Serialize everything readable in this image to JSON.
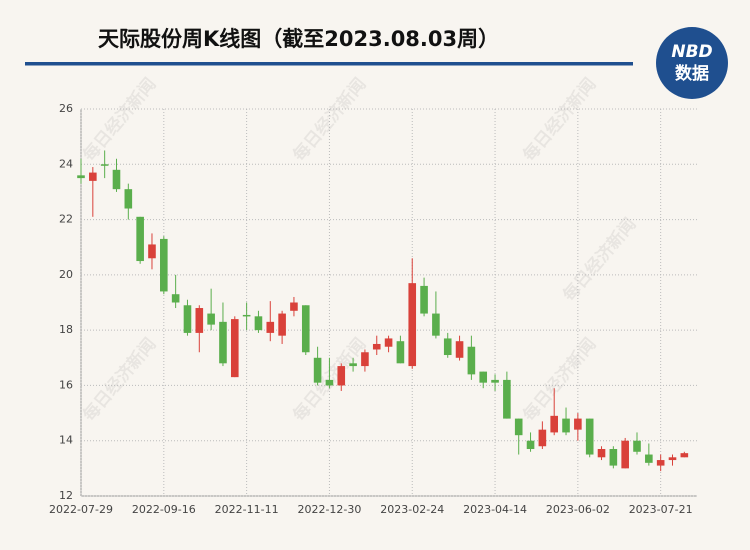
{
  "header": {
    "logo_top": "NBD",
    "logo_bottom": "数据",
    "watermark": "每日经济新闻"
  },
  "chart_data": {
    "type": "candlestick",
    "title": "天际股份周K线图（截至2023.08.03周）",
    "categories": [
      "2022-07-29",
      null,
      null,
      null,
      null,
      null,
      null,
      "2022-09-16",
      null,
      null,
      null,
      null,
      null,
      null,
      "2022-11-11",
      null,
      null,
      null,
      null,
      null,
      null,
      "2022-12-30",
      null,
      null,
      null,
      null,
      null,
      null,
      "2023-02-24",
      null,
      null,
      null,
      null,
      null,
      null,
      "2023-04-14",
      null,
      null,
      null,
      null,
      null,
      null,
      "2023-06-02",
      null,
      null,
      null,
      null,
      null,
      null,
      "2023-07-21",
      null,
      null
    ],
    "open": [
      23.6,
      23.4,
      24.0,
      23.8,
      23.1,
      22.1,
      20.6,
      21.3,
      19.3,
      18.9,
      17.9,
      18.6,
      18.3,
      16.3,
      18.55,
      18.5,
      17.9,
      17.8,
      18.7,
      18.9,
      17.0,
      16.2,
      16.0,
      16.8,
      16.7,
      17.3,
      17.4,
      17.6,
      16.7,
      19.6,
      18.6,
      17.7,
      17.0,
      17.4,
      16.5,
      16.2,
      16.2,
      14.8,
      14.0,
      13.8,
      14.3,
      14.8,
      14.4,
      14.8,
      13.4,
      13.7,
      13.0,
      14.0,
      13.5,
      13.1,
      13.3,
      13.4
    ],
    "high": [
      24.2,
      23.9,
      24.5,
      24.2,
      23.3,
      22.1,
      21.5,
      21.4,
      20.0,
      19.1,
      18.9,
      19.5,
      19.0,
      18.5,
      19.0,
      18.7,
      19.05,
      18.7,
      19.2,
      18.9,
      17.4,
      17.0,
      16.8,
      17.0,
      17.3,
      17.8,
      17.8,
      17.8,
      20.6,
      19.9,
      19.4,
      17.9,
      17.8,
      17.8,
      16.5,
      16.4,
      16.5,
      14.8,
      14.3,
      14.7,
      15.9,
      15.2,
      15.0,
      14.8,
      13.8,
      13.8,
      14.1,
      14.3,
      13.9,
      13.5,
      13.5,
      13.6
    ],
    "low": [
      23.3,
      22.1,
      23.5,
      23.0,
      22.0,
      20.4,
      20.2,
      19.3,
      18.8,
      17.8,
      17.2,
      18.0,
      16.7,
      16.3,
      18.0,
      17.9,
      17.6,
      17.5,
      18.5,
      17.1,
      16.0,
      15.9,
      15.8,
      16.5,
      16.5,
      17.1,
      17.2,
      16.8,
      16.6,
      18.5,
      17.7,
      17.0,
      16.9,
      16.2,
      15.9,
      15.8,
      14.8,
      13.5,
      13.6,
      13.7,
      14.2,
      14.2,
      14.0,
      13.4,
      13.3,
      13.0,
      13.0,
      13.5,
      13.1,
      12.9,
      13.1,
      13.4
    ],
    "close": [
      23.5,
      23.7,
      23.95,
      23.1,
      22.4,
      20.5,
      21.1,
      19.4,
      19.0,
      17.9,
      18.8,
      18.2,
      16.8,
      18.4,
      18.5,
      18.0,
      18.3,
      18.6,
      19.0,
      17.2,
      16.1,
      16.0,
      16.7,
      16.7,
      17.2,
      17.5,
      17.7,
      16.8,
      19.7,
      18.6,
      17.8,
      17.1,
      17.6,
      16.4,
      16.1,
      16.1,
      14.8,
      14.2,
      13.7,
      14.4,
      14.9,
      14.3,
      14.8,
      13.5,
      13.7,
      13.1,
      14.0,
      13.6,
      13.2,
      13.3,
      13.4,
      13.55
    ],
    "up_color": "#d9413a",
    "down_color": "#5aae4c",
    "ylim": [
      12,
      26
    ],
    "yticks": [
      12,
      14,
      16,
      18,
      20,
      22,
      24,
      26
    ],
    "grid": true
  }
}
